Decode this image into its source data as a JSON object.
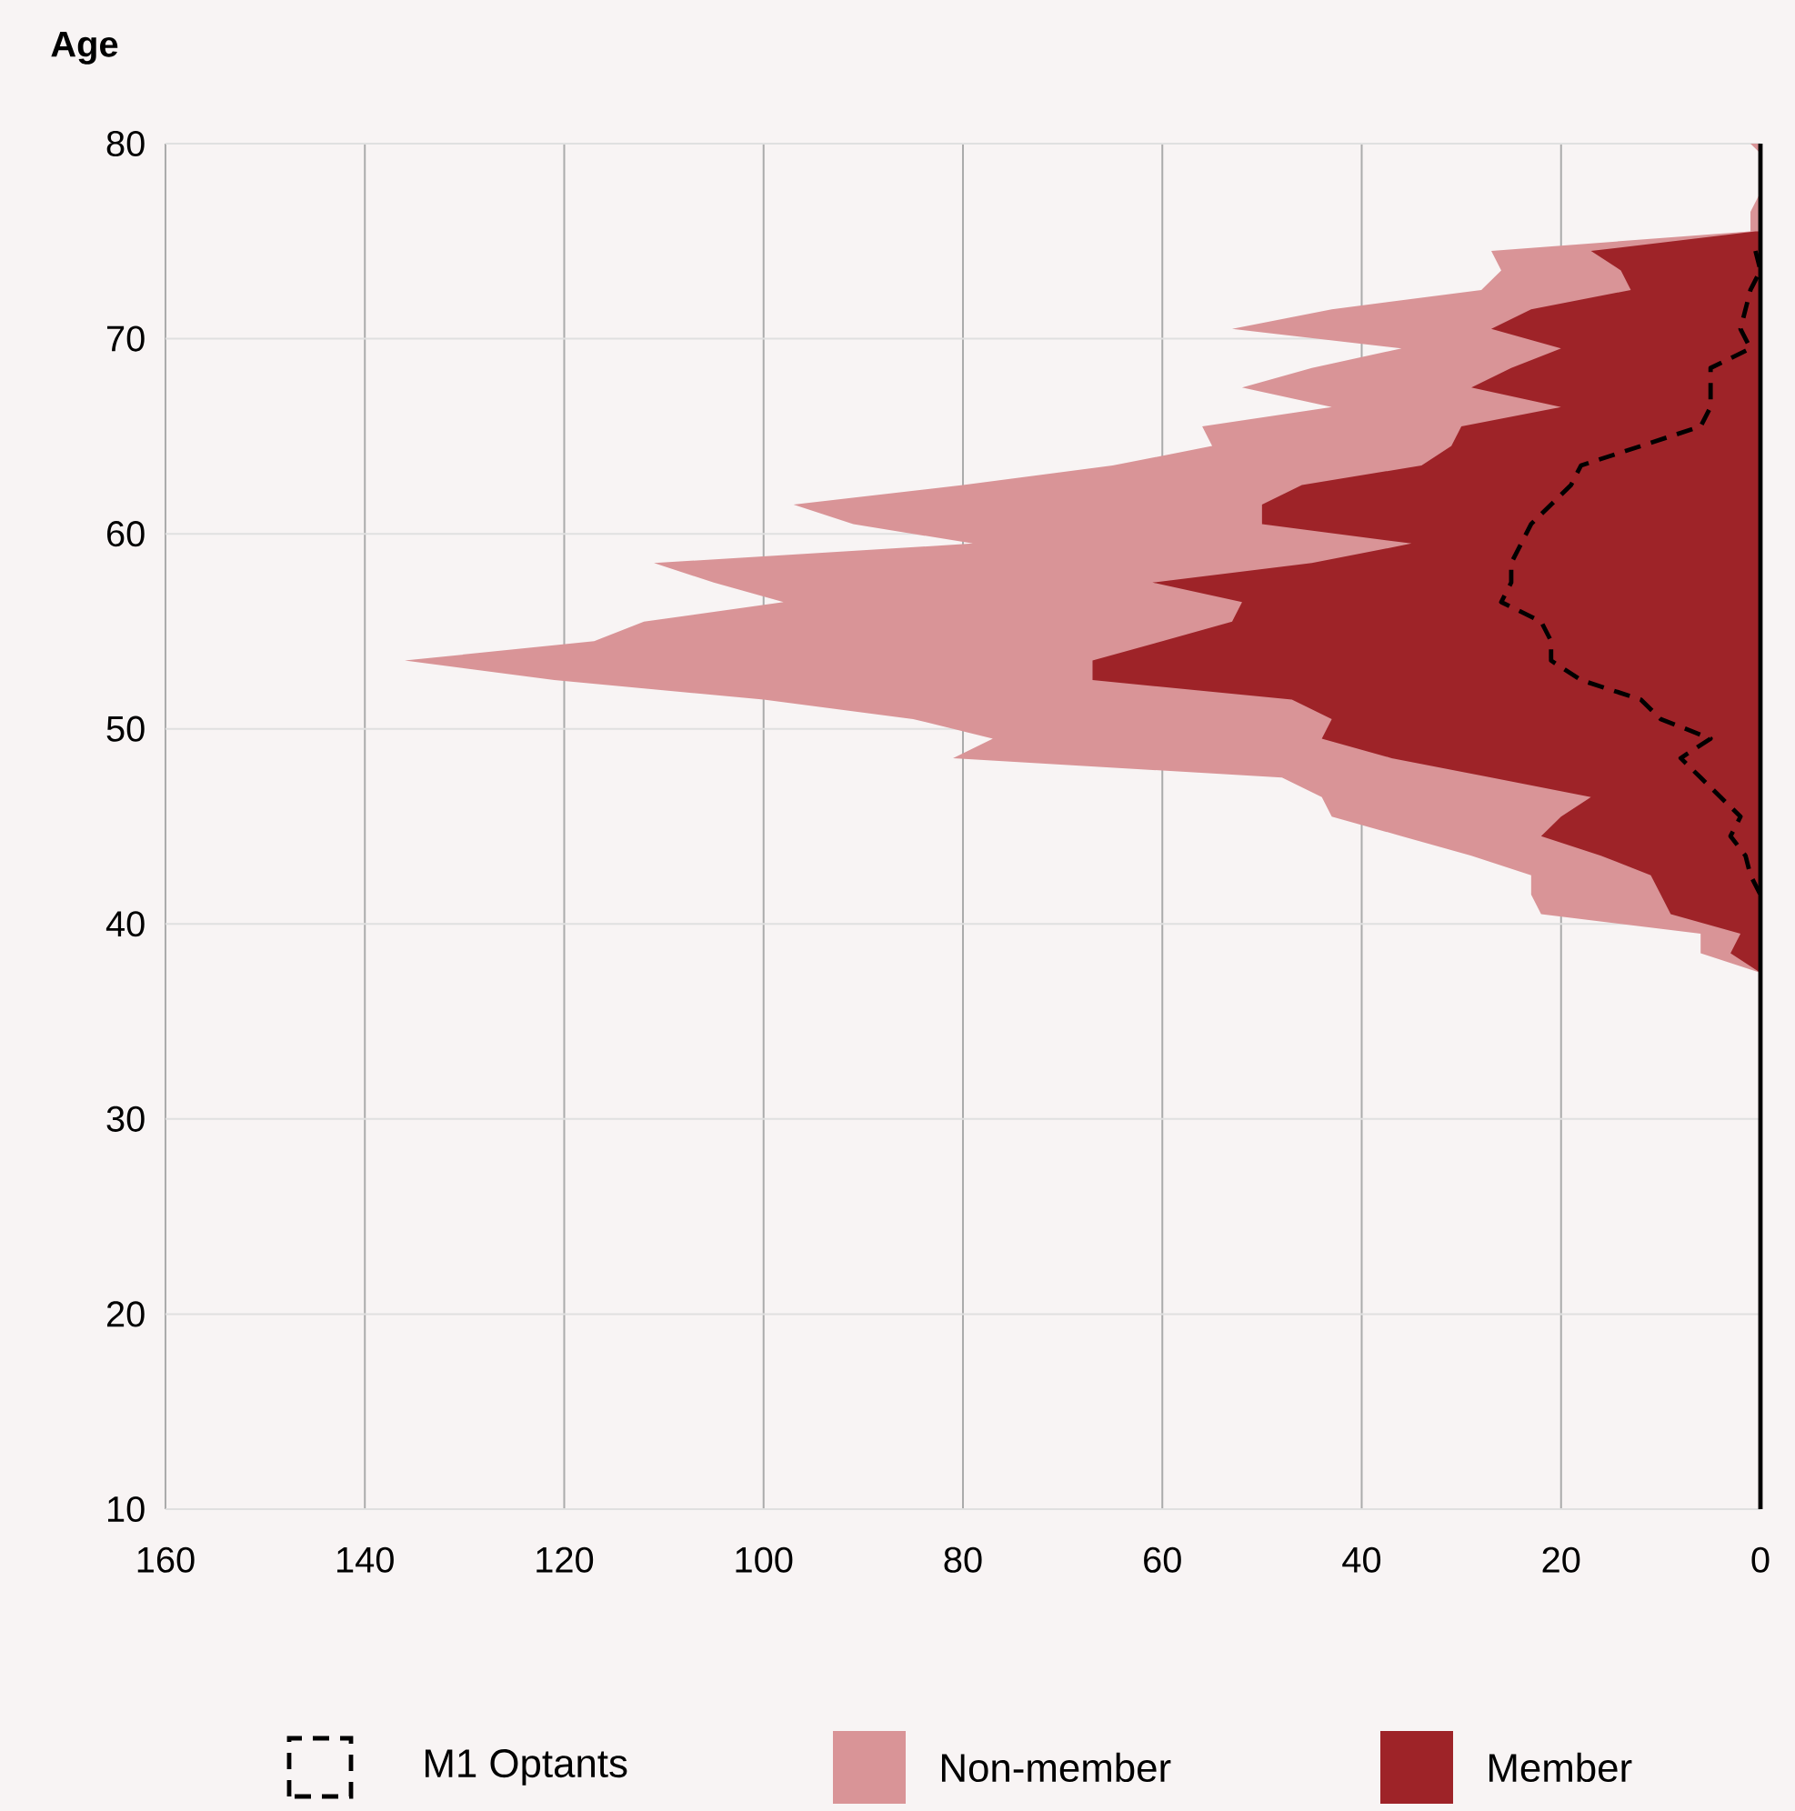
{
  "chart_data": {
    "type": "area",
    "orientation": "horizontal",
    "ylabel": "Age",
    "xlim": [
      160,
      0
    ],
    "xticks": [
      160,
      140,
      120,
      100,
      80,
      60,
      40,
      20,
      0
    ],
    "ylim": [
      10,
      80
    ],
    "yticks": [
      10,
      20,
      30,
      40,
      50,
      60,
      70,
      80
    ],
    "grid": true,
    "legend": "bottom",
    "ref_lines": [
      {
        "axis": "x",
        "value": 0,
        "color": "#000000"
      }
    ],
    "series": [
      {
        "name": "M1 Optants",
        "type": "line",
        "line_style": "dashed",
        "color": "#000000",
        "x": [
          74.5,
          73.5,
          72.5,
          71.5,
          70.5,
          69.5,
          68.5,
          67.5,
          66.5,
          65.5,
          64.5,
          63.5,
          62.5,
          61.5,
          60.5,
          59.5,
          58.5,
          57.5,
          56.5,
          55.5,
          54.5,
          53.5,
          52.5,
          51.5,
          50.5,
          49.5,
          48.5,
          47.5,
          46.5,
          45.5,
          44.5,
          43.5,
          42.5,
          41.5
        ],
        "values": [
          0.5,
          0,
          1,
          1.5,
          2,
          1,
          5,
          5,
          5,
          6,
          12,
          18,
          19,
          21,
          23,
          24,
          25,
          25,
          26,
          22,
          21,
          21,
          18,
          12,
          10,
          5,
          8,
          6,
          4,
          2,
          3,
          1.5,
          1,
          0
        ]
      },
      {
        "name": "Non-member",
        "color": "#d99497",
        "x": [
          80,
          79.5,
          78.5,
          77.5,
          76.5,
          75.5,
          74.5,
          73.5,
          72.5,
          71.5,
          70.5,
          69.5,
          68.5,
          67.5,
          66.5,
          65.5,
          64.5,
          63.5,
          62.5,
          61.5,
          60.5,
          59.5,
          58.5,
          57.5,
          56.5,
          55.5,
          54.5,
          53.5,
          52.5,
          51.5,
          50.5,
          49.5,
          48.5,
          47.5,
          46.5,
          45.5,
          44.5,
          43.5,
          42.5,
          41.5,
          40.5,
          39.5,
          38.5,
          37.5
        ],
        "values": [
          1,
          0,
          0,
          0,
          1,
          1,
          27,
          26,
          28,
          43,
          53,
          36,
          45,
          52,
          43,
          56,
          55,
          65,
          80,
          97,
          91,
          79,
          111,
          105,
          98,
          112,
          117,
          136,
          121,
          100,
          85,
          77,
          81,
          48,
          44,
          43,
          36,
          29,
          23,
          23,
          22,
          6,
          6,
          0
        ]
      },
      {
        "name": "Member",
        "color": "#9e2328",
        "x": [
          75.5,
          74.5,
          73.5,
          72.5,
          71.5,
          70.5,
          69.5,
          68.5,
          67.5,
          66.5,
          65.5,
          64.5,
          63.5,
          62.5,
          61.5,
          60.5,
          59.5,
          58.5,
          57.5,
          56.5,
          55.5,
          54.5,
          53.5,
          52.5,
          51.5,
          50.5,
          49.5,
          48.5,
          47.5,
          46.5,
          45.5,
          44.5,
          43.5,
          42.5,
          41.5,
          40.5,
          39.5,
          38.5,
          37.5
        ],
        "values": [
          0.5,
          17,
          14,
          13,
          23,
          27,
          20,
          25,
          29,
          20,
          30,
          31,
          34,
          46,
          50,
          50,
          35,
          45,
          61,
          52,
          53,
          60,
          67,
          67,
          47,
          43,
          44,
          37,
          27,
          17,
          20,
          22,
          16,
          11,
          10,
          9,
          2,
          3,
          0
        ]
      }
    ]
  }
}
